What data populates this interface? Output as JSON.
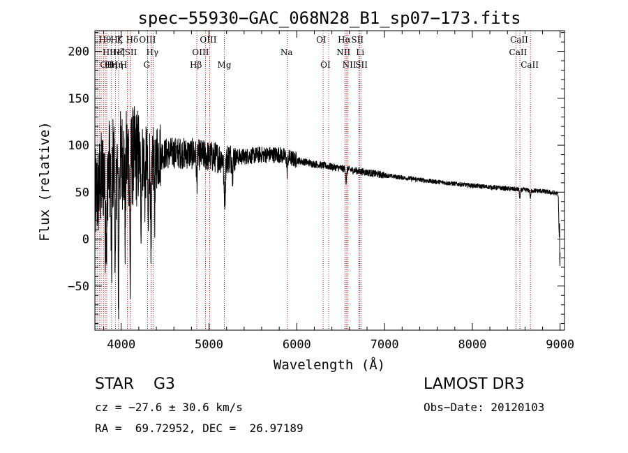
{
  "chart_data": {
    "type": "line",
    "title": "spec−55930−GAC_068N28_B1_sp07−173.fits",
    "xlabel": "Wavelength (Å)",
    "ylabel": "Flux (relative)",
    "xlim": [
      3700,
      9050
    ],
    "ylim": [
      -97,
      222
    ],
    "xticks": [
      4000,
      5000,
      6000,
      7000,
      8000,
      9000
    ],
    "xtick_labels": [
      "4000",
      "5000",
      "6000",
      "7000",
      "8000",
      "9000"
    ],
    "yticks": [
      -50,
      0,
      50,
      100,
      150,
      200
    ],
    "ytick_labels": [
      "−50",
      "0",
      "50",
      "100",
      "150",
      "200"
    ],
    "grid": false,
    "line_color": "#000000",
    "marker_color": "#cc0000",
    "continuum": [
      {
        "x": 3700,
        "y": 40
      },
      {
        "x": 3800,
        "y": 70
      },
      {
        "x": 3900,
        "y": 80
      },
      {
        "x": 4000,
        "y": 85
      },
      {
        "x": 4100,
        "y": 88
      },
      {
        "x": 4200,
        "y": 87
      },
      {
        "x": 4300,
        "y": 86
      },
      {
        "x": 4400,
        "y": 90
      },
      {
        "x": 4600,
        "y": 92
      },
      {
        "x": 4800,
        "y": 91
      },
      {
        "x": 5000,
        "y": 88
      },
      {
        "x": 5200,
        "y": 86
      },
      {
        "x": 5400,
        "y": 88
      },
      {
        "x": 5600,
        "y": 90
      },
      {
        "x": 5800,
        "y": 90
      },
      {
        "x": 6000,
        "y": 84
      },
      {
        "x": 6200,
        "y": 80
      },
      {
        "x": 6400,
        "y": 77
      },
      {
        "x": 6600,
        "y": 74
      },
      {
        "x": 6800,
        "y": 71
      },
      {
        "x": 7000,
        "y": 68
      },
      {
        "x": 7500,
        "y": 62
      },
      {
        "x": 8000,
        "y": 57
      },
      {
        "x": 8500,
        "y": 53
      },
      {
        "x": 8800,
        "y": 51
      },
      {
        "x": 9000,
        "y": 48
      }
    ],
    "absorption_lines": [
      {
        "x": 3820,
        "depth": 60
      },
      {
        "x": 3835,
        "depth": 70
      },
      {
        "x": 3889,
        "depth": 110
      },
      {
        "x": 3934,
        "depth": 130
      },
      {
        "x": 3969,
        "depth": 140
      },
      {
        "x": 4045,
        "depth": 70
      },
      {
        "x": 4102,
        "depth": 135
      },
      {
        "x": 4226,
        "depth": 60
      },
      {
        "x": 4271,
        "depth": 40
      },
      {
        "x": 4308,
        "depth": 80
      },
      {
        "x": 4340,
        "depth": 130
      },
      {
        "x": 4383,
        "depth": 55
      },
      {
        "x": 4861,
        "depth": 30
      },
      {
        "x": 5172,
        "depth": 35
      },
      {
        "x": 5183,
        "depth": 35
      },
      {
        "x": 5270,
        "depth": 15
      },
      {
        "x": 5890,
        "depth": 15
      },
      {
        "x": 6563,
        "depth": 15
      },
      {
        "x": 8542,
        "depth": 10
      },
      {
        "x": 8662,
        "depth": 8
      },
      {
        "x": 8990,
        "depth": 45
      }
    ],
    "line_markers": [
      {
        "x": 3712,
        "label": "Hθ",
        "row": 0,
        "off": 4
      },
      {
        "x": 3727,
        "label": "OII",
        "row": 2,
        "off": 4
      },
      {
        "x": 3750,
        "label": "Hη",
        "row": 2,
        "off": 8
      },
      {
        "x": 3771,
        "label": "Hι",
        "row": 1,
        "off": 2
      },
      {
        "x": 3798,
        "label": "Hζ",
        "row": 0,
        "off": 10
      },
      {
        "x": 3820,
        "label": "HeI",
        "row": 1,
        "off": 6
      },
      {
        "x": 3835,
        "label": "Hη",
        "row": 2,
        "off": 6
      },
      {
        "x": 3889,
        "label": "Hζ",
        "row": 1,
        "off": 2
      },
      {
        "x": 3934,
        "label": "K",
        "row": 0,
        "off": 2
      },
      {
        "x": 3969,
        "label": "H",
        "row": 2,
        "off": 2
      },
      {
        "x": 4071,
        "label": "SII",
        "row": 1,
        "off": -4
      },
      {
        "x": 4102,
        "label": "Hδ",
        "row": 0,
        "off": -6
      },
      {
        "x": 4300,
        "label": "G",
        "row": 2,
        "off": -6
      },
      {
        "x": 4340,
        "label": "Hγ",
        "row": 1,
        "off": -7
      },
      {
        "x": 4363,
        "label": "OIII",
        "row": 0,
        "off": -20
      },
      {
        "x": 4861,
        "label": "Hβ",
        "row": 2,
        "off": -10
      },
      {
        "x": 4959,
        "label": "OIII",
        "row": 1,
        "off": -19
      },
      {
        "x": 5007,
        "label": "OIII",
        "row": 0,
        "off": -14
      },
      {
        "x": 5175,
        "label": "Mg",
        "row": 2,
        "off": -10
      },
      {
        "x": 5893,
        "label": "Na",
        "row": 1,
        "off": -10
      },
      {
        "x": 6300,
        "label": "OI",
        "row": 0,
        "off": -10
      },
      {
        "x": 6364,
        "label": "OI",
        "row": 2,
        "off": -12
      },
      {
        "x": 6548,
        "label": "NII",
        "row": 1,
        "off": -12
      },
      {
        "x": 6563,
        "label": "Hα",
        "row": 0,
        "off": -12
      },
      {
        "x": 6583,
        "label": "NII",
        "row": 2,
        "off": -8
      },
      {
        "x": 6707,
        "label": "Li",
        "row": 1,
        "off": -4
      },
      {
        "x": 6716,
        "label": "SII",
        "row": 0,
        "off": -12
      },
      {
        "x": 6731,
        "label": "SII",
        "row": 2,
        "off": -8
      },
      {
        "x": 8498,
        "label": "CaII",
        "row": 1,
        "off": -10
      },
      {
        "x": 8542,
        "label": "CaII",
        "row": 0,
        "off": -14
      },
      {
        "x": 8662,
        "label": "CaII",
        "row": 2,
        "off": -14
      }
    ]
  },
  "info": {
    "class": "STAR    G3",
    "survey": "LAMOST DR3",
    "cz": "cz = −27.6 ± 30.6 km/s",
    "obs_date": "Obs−Date: 20120103",
    "coords": "RA =  69.72952, DEC =  26.97189"
  }
}
